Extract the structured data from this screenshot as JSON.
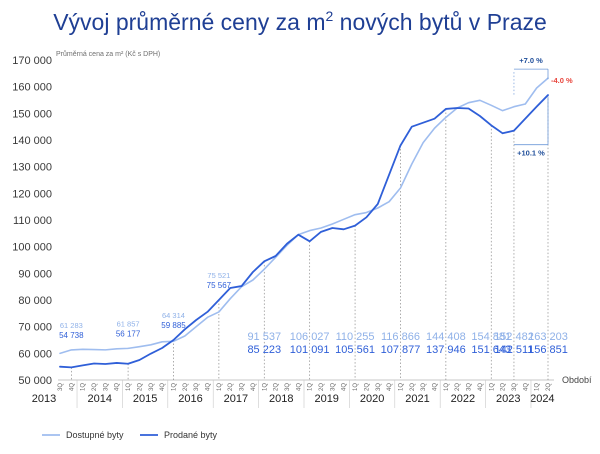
{
  "title": {
    "before_sup": "Vývoj průměrné ceny za m",
    "sup": "2",
    "after_sup": " nových bytů v Praze"
  },
  "colors": {
    "light_series": "#9fbdef",
    "dark_series": "#2f5fd8",
    "title": "#1f3f94",
    "negative": "#e8453c"
  },
  "chart_data": {
    "type": "line",
    "ylabel": "Průměrná cena za m² (Kč s DPH)",
    "xlabel": "Období",
    "ylim": [
      50000,
      170000
    ],
    "y_ticks": [
      50000,
      60000,
      70000,
      80000,
      90000,
      100000,
      110000,
      120000,
      130000,
      140000,
      150000,
      160000,
      170000
    ],
    "y_tick_labels": [
      "50 000",
      "60 000",
      "70 000",
      "80 000",
      "90 000",
      "100 000",
      "110 000",
      "120 000",
      "130 000",
      "140 000",
      "150 000",
      "160 000",
      "170 000"
    ],
    "grid": false,
    "legend_position": "bottom-left",
    "categories": [
      "3Q 2013",
      "4Q 2013",
      "1Q 2014",
      "2Q 2014",
      "3Q 2014",
      "4Q 2014",
      "1Q 2015",
      "2Q 2015",
      "3Q 2015",
      "4Q 2015",
      "1Q 2016",
      "2Q 2016",
      "3Q 2016",
      "4Q 2016",
      "1Q 2017",
      "2Q 2017",
      "3Q 2017",
      "4Q 2017",
      "1Q 2018",
      "2Q 2018",
      "3Q 2018",
      "4Q 2018",
      "1Q 2019",
      "2Q 2019",
      "3Q 2019",
      "4Q 2019",
      "1Q 2020",
      "2Q 2020",
      "3Q 2020",
      "4Q 2020",
      "1Q 2021",
      "2Q 2021",
      "3Q 2021",
      "4Q 2021",
      "1Q 2022",
      "2Q 2022",
      "3Q 2022",
      "4Q 2022",
      "1Q 2023",
      "2Q 2023",
      "3Q 2023",
      "4Q 2023",
      "1Q 2024",
      "2Q 2024"
    ],
    "quarter_tick_labels": [
      "3Q",
      "4Q",
      "1Q",
      "2Q",
      "3Q",
      "4Q",
      "1Q",
      "2Q",
      "3Q",
      "4Q",
      "1Q",
      "2Q",
      "3Q",
      "4Q",
      "1Q",
      "2Q",
      "3Q",
      "4Q",
      "1Q",
      "2Q",
      "3Q",
      "4Q",
      "1Q",
      "2Q",
      "3Q",
      "4Q",
      "1Q",
      "2Q",
      "3Q",
      "4Q",
      "1Q",
      "2Q",
      "3Q",
      "4Q",
      "1Q",
      "2Q",
      "3Q",
      "4Q",
      "1Q",
      "2Q",
      "3Q",
      "4Q",
      "1Q",
      "2Q"
    ],
    "years": [
      "2013",
      "2014",
      "2015",
      "2016",
      "2017",
      "2018",
      "2019",
      "2020",
      "2021",
      "2022",
      "2023",
      "2024"
    ],
    "year_index_range": [
      [
        0,
        1
      ],
      [
        2,
        5
      ],
      [
        6,
        9
      ],
      [
        10,
        13
      ],
      [
        14,
        17
      ],
      [
        18,
        21
      ],
      [
        22,
        25
      ],
      [
        26,
        29
      ],
      [
        30,
        33
      ],
      [
        34,
        37
      ],
      [
        38,
        41
      ],
      [
        42,
        43
      ]
    ],
    "series": [
      {
        "name": "Dostupné byty",
        "role": "light",
        "values": [
          60000,
          61283,
          61500,
          61400,
          61300,
          61700,
          61857,
          62500,
          63200,
          64314,
          64500,
          66500,
          70000,
          73500,
          75521,
          80500,
          85000,
          87500,
          91537,
          96000,
          100500,
          104500,
          106027,
          107000,
          108500,
          110255,
          112000,
          112800,
          114500,
          116866,
          122000,
          131000,
          139000,
          144408,
          148500,
          152000,
          154000,
          154881,
          153000,
          151000,
          152482,
          153500,
          159500,
          163203
        ]
      },
      {
        "name": "Prodané byty",
        "role": "dark",
        "values": [
          55000,
          54738,
          55500,
          56177,
          56000,
          56400,
          56100,
          57500,
          59885,
          62000,
          65000,
          69000,
          72500,
          75567,
          80000,
          84500,
          85223,
          90500,
          94500,
          96500,
          101091,
          104500,
          102000,
          105561,
          107000,
          106500,
          107877,
          111000,
          116000,
          127000,
          137946,
          145000,
          146500,
          148000,
          151643,
          152000,
          151800,
          149000,
          145500,
          142511,
          143500,
          148000,
          152500,
          156851
        ]
      }
    ],
    "annotations_small": [
      {
        "index": 1,
        "light": "61 283",
        "dark": "54 738"
      },
      {
        "index": 6,
        "light": "61 857",
        "dark": "56 177"
      },
      {
        "index": 10,
        "light": "64 314",
        "dark": "59 885"
      },
      {
        "index": 14,
        "light": "75 521",
        "dark": "75 567"
      }
    ],
    "annotations_large": [
      {
        "index": 18,
        "light": "91 537",
        "dark": "85 223"
      },
      {
        "index": 22,
        "light": "106 027",
        "dark": "101 091"
      },
      {
        "index": 26,
        "light": "110 255",
        "dark": "105 561"
      },
      {
        "index": 30,
        "light": "116 866",
        "dark": "107 877"
      },
      {
        "index": 34,
        "light": "144 408",
        "dark": "137 946"
      },
      {
        "index": 38,
        "light": "154 881",
        "dark": "151 643"
      },
      {
        "index": 40,
        "light": "152 482",
        "dark": "142 511"
      },
      {
        "index": 43,
        "light": "163 203",
        "dark": "156 851"
      }
    ],
    "percent_annotations": {
      "light_change": "+7.0 %",
      "gap_change": "-4.0 %",
      "dark_change": "+10.1 %"
    }
  }
}
